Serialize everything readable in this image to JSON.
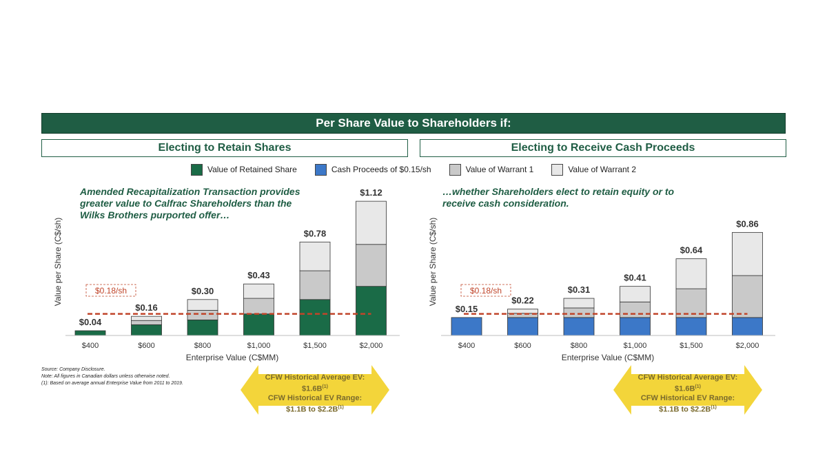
{
  "banner": "Per Share Value to Shareholders if:",
  "legend": [
    {
      "label": "Value of Retained Share",
      "color": "#1a6b47"
    },
    {
      "label": "Cash Proceeds of $0.15/sh",
      "color": "#3c78c8"
    },
    {
      "label": "Value of Warrant 1",
      "color": "#c9c9c9"
    },
    {
      "label": "Value of Warrant 2",
      "color": "#e8e8e8"
    }
  ],
  "reference": {
    "value": 0.18,
    "label": "$0.18/sh",
    "color": "#c0452a"
  },
  "charts": {
    "left": {
      "callout": [
        "Amended Recapitalization Transaction provides",
        "greater value to Calfrac Shareholders than the",
        "Wilks Brothers purported offer…"
      ]
    },
    "right": {
      "callout": [
        "…whether Shareholders elect to retain equity or to",
        "receive cash consideration."
      ]
    }
  },
  "chart_data": [
    {
      "type": "bar",
      "title": "Electing to Retain Shares",
      "xlabel": "Enterprise Value (C$MM)",
      "ylabel": "Value per Share (C$/sh)",
      "stacked": true,
      "categories": [
        "$400",
        "$600",
        "$800",
        "$1,000",
        "$1,500",
        "$2,000"
      ],
      "series": [
        {
          "name": "Value of Retained Share",
          "values": [
            0.04,
            0.09,
            0.13,
            0.18,
            0.3,
            0.41
          ]
        },
        {
          "name": "Value of Warrant 1",
          "values": [
            0.0,
            0.035,
            0.08,
            0.13,
            0.24,
            0.35
          ]
        },
        {
          "name": "Value of Warrant 2",
          "values": [
            0.0,
            0.035,
            0.09,
            0.12,
            0.24,
            0.36
          ]
        }
      ],
      "totals": [
        "$0.04",
        "$0.16",
        "$0.30",
        "$0.43",
        "$0.78",
        "$1.12"
      ],
      "reference_line": 0.18
    },
    {
      "type": "bar",
      "title": "Electing to Receive Cash Proceeds",
      "xlabel": "Enterprise Value (C$MM)",
      "ylabel": "Value per Share (C$/sh)",
      "stacked": true,
      "categories": [
        "$400",
        "$600",
        "$800",
        "$1,000",
        "$1,500",
        "$2,000"
      ],
      "series": [
        {
          "name": "Cash Proceeds of $0.15/sh",
          "values": [
            0.15,
            0.15,
            0.15,
            0.15,
            0.15,
            0.15
          ]
        },
        {
          "name": "Value of Warrant 1",
          "values": [
            0.0,
            0.035,
            0.08,
            0.13,
            0.24,
            0.35
          ]
        },
        {
          "name": "Value of Warrant 2",
          "values": [
            0.0,
            0.035,
            0.08,
            0.13,
            0.25,
            0.36
          ]
        }
      ],
      "totals": [
        "$0.15",
        "$0.22",
        "$0.31",
        "$0.41",
        "$0.64",
        "$0.86"
      ],
      "reference_line": 0.18
    }
  ],
  "notes": [
    "Source: Company Disclosure.",
    "Note: All figures in Canadian  dollars unless otherwise noted.",
    "(1): Based on average annual Enterprise Value from 2011 to 2019."
  ],
  "historical": {
    "line1": "CFW Historical Average EV:",
    "line2": "$1.6B",
    "line3": "CFW Historical EV Range:",
    "line4": "$1.1B to $2.2B",
    "footnote": "(1)"
  }
}
